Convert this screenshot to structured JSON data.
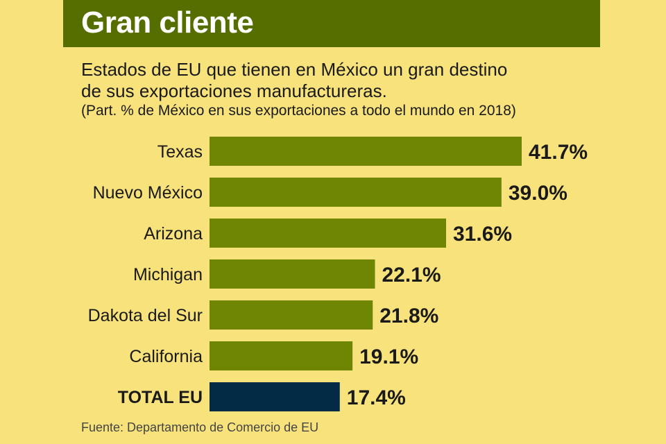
{
  "header": {
    "title": "Gran cliente"
  },
  "subtitle": {
    "line1": "Estados de EU que tienen en México un gran destino",
    "line2": "de sus exportaciones manufactureras."
  },
  "note": "(Part. % de México en sus exportaciones a todo el mundo en 2018)",
  "source": "Fuente: Departamento de Comercio de EU",
  "colors": {
    "background": "#f8e27c",
    "header": "#566d00",
    "bar": "#6e8603",
    "total_bar": "#032b45",
    "text": "#1a1a1a"
  },
  "chart_data": {
    "type": "bar",
    "orientation": "horizontal",
    "title": "Gran cliente",
    "subtitle": "Estados de EU que tienen en México un gran destino de sus exportaciones manufactureras.",
    "xlabel": "",
    "ylabel": "",
    "unit": "%",
    "categories": [
      "Texas",
      "Nuevo México",
      "Arizona",
      "Michigan",
      "Dakota del Sur",
      "California",
      "TOTAL EU"
    ],
    "values": [
      41.7,
      39.0,
      31.6,
      22.1,
      21.8,
      19.1,
      17.4
    ],
    "value_labels": [
      "41.7%",
      "39.0%",
      "31.6%",
      "22.1%",
      "21.8%",
      "19.1%",
      "17.4%"
    ],
    "highlight": [
      "TOTAL EU"
    ],
    "xlim": [
      0,
      41.7
    ],
    "grid": false,
    "legend": "none"
  }
}
